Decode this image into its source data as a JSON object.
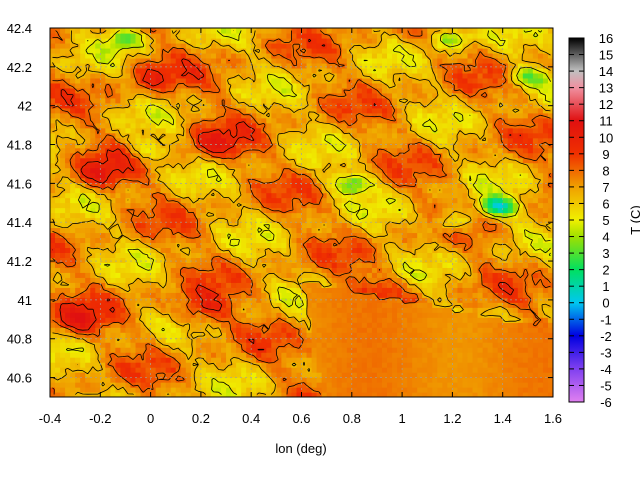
{
  "chart_data": {
    "type": "heatmap",
    "title": "",
    "xlabel": "lon (deg)",
    "ylabel": "",
    "xlim": [
      -0.4,
      1.6
    ],
    "ylim": [
      40.5,
      42.4
    ],
    "xticks": [
      "-0.4",
      "-0.2",
      "0",
      "0.2",
      "0.4",
      "0.6",
      "0.8",
      "1",
      "1.2",
      "1.4",
      "1.6"
    ],
    "yticks": [
      "40.6",
      "40.8",
      "41",
      "41.2",
      "41.4",
      "41.6",
      "41.8",
      "42",
      "42.2",
      "42.4"
    ],
    "grid": true,
    "colorbar": {
      "label": "T (C)",
      "min": -6,
      "max": 16,
      "ticks": [
        "-6",
        "-5",
        "-4",
        "-3",
        "-2",
        "-1",
        "0",
        "1",
        "2",
        "3",
        "4",
        "5",
        "6",
        "7",
        "8",
        "9",
        "10",
        "11",
        "12",
        "13",
        "14",
        "15",
        "16"
      ],
      "stops": [
        {
          "value": -6,
          "color": "#e080f0"
        },
        {
          "value": -4,
          "color": "#8040f0"
        },
        {
          "value": -2,
          "color": "#0000e0"
        },
        {
          "value": 0,
          "color": "#00c8f0"
        },
        {
          "value": 2,
          "color": "#00e060"
        },
        {
          "value": 4,
          "color": "#a0e000"
        },
        {
          "value": 5,
          "color": "#f0f000"
        },
        {
          "value": 7,
          "color": "#f0a000"
        },
        {
          "value": 9,
          "color": "#f03000"
        },
        {
          "value": 11,
          "color": "#e01010"
        },
        {
          "value": 13,
          "color": "#f090a0"
        },
        {
          "value": 14,
          "color": "#c0c0c0"
        },
        {
          "value": 16,
          "color": "#000000"
        }
      ]
    },
    "contours": true,
    "field_summary": {
      "range": [
        0,
        11
      ],
      "typical": 7,
      "sea_region": {
        "lon_min": 0.6,
        "lat_max": 41.1,
        "value": 7.5
      },
      "warm_zones": [
        {
          "lon": -0.2,
          "lat": 41.65,
          "value": 9.5
        },
        {
          "lon": 0.2,
          "lat": 40.95,
          "value": 10
        },
        {
          "lon": 0.25,
          "lat": 41.8,
          "value": 9.5
        },
        {
          "lon": 0.9,
          "lat": 41.05,
          "value": 9
        },
        {
          "lon": 0.0,
          "lat": 42.15,
          "value": 9
        },
        {
          "lon": -0.3,
          "lat": 40.9,
          "value": 9.5
        }
      ],
      "cool_zones": [
        {
          "lon": 0.8,
          "lat": 41.6,
          "value": 3
        },
        {
          "lon": 1.2,
          "lat": 41.4,
          "value": 3.5
        },
        {
          "lon": 1.38,
          "lat": 41.48,
          "value": 1
        },
        {
          "lon": 1.5,
          "lat": 42.15,
          "value": 3.5
        },
        {
          "lon": 1.2,
          "lat": 42.35,
          "value": 3.5
        },
        {
          "lon": -0.1,
          "lat": 42.35,
          "value": 3.5
        },
        {
          "lon": 0.0,
          "lat": 41.78,
          "value": 4.5
        }
      ]
    }
  }
}
